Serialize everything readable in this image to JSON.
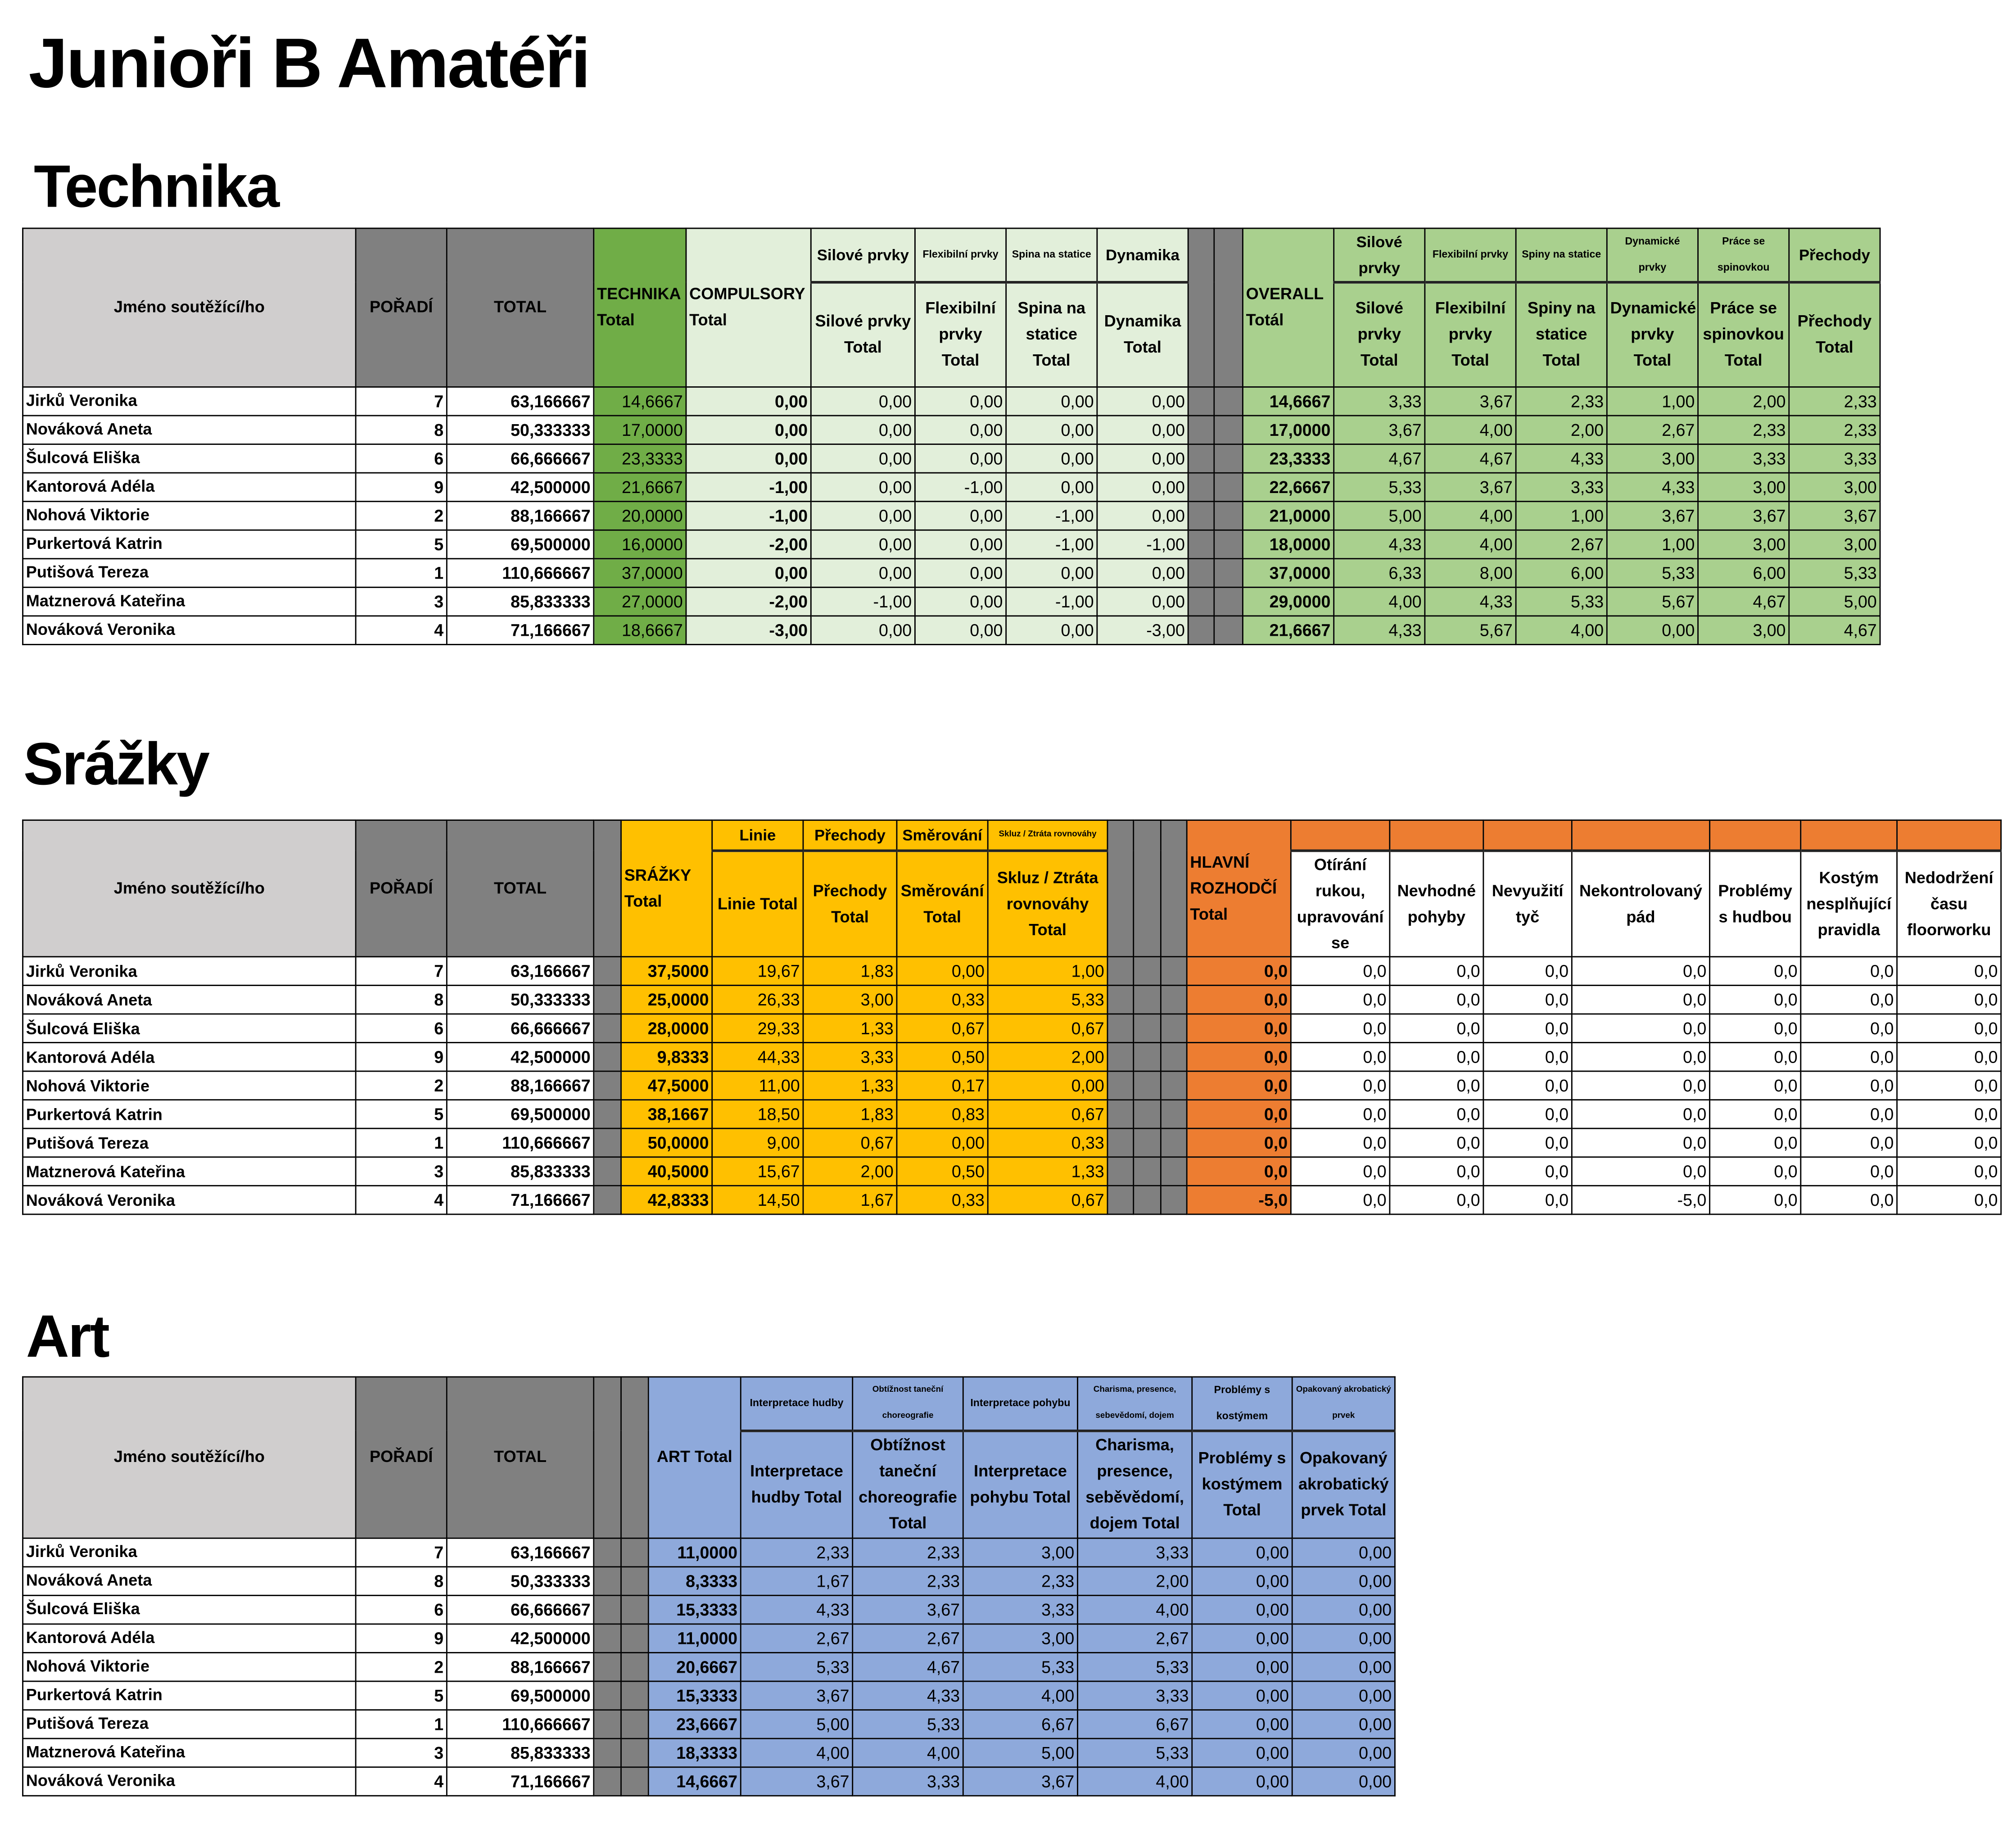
{
  "title": "Junioři B Amatéři",
  "common_headers": {
    "name": "Jméno soutěžící/ho",
    "poradi": "POŘADÍ",
    "total": "TOTAL"
  },
  "contestants": [
    {
      "name": "Jirků Veronika",
      "poradi": "7",
      "total": "63,166667"
    },
    {
      "name": "Nováková Aneta",
      "poradi": "8",
      "total": "50,333333"
    },
    {
      "name": "Šulcová Eliška",
      "poradi": "6",
      "total": "66,666667"
    },
    {
      "name": "Kantorová Adéla",
      "poradi": "9",
      "total": "42,500000"
    },
    {
      "name": "Nohová Viktorie",
      "poradi": "2",
      "total": "88,166667"
    },
    {
      "name": "Purkertová Katrin",
      "poradi": "5",
      "total": "69,500000"
    },
    {
      "name": "Putišová Tereza",
      "poradi": "1",
      "total": "110,666667"
    },
    {
      "name": "Matznerová Kateřina",
      "poradi": "3",
      "total": "85,833333"
    },
    {
      "name": "Nováková Veronika",
      "poradi": "4",
      "total": "71,166667"
    }
  ],
  "sections": {
    "technika": {
      "heading": "Technika",
      "columns": [
        {
          "group": "",
          "label": "TECHNIKA Total"
        },
        {
          "group": "",
          "label": "COMPULSORY Total"
        },
        {
          "group": "Silové prvky",
          "label": "Silové prvky Total"
        },
        {
          "group": "Flexibilní prvky",
          "label": "Flexibilní prvky Total"
        },
        {
          "group": "Spina na statice",
          "label": "Spina na statice Total"
        },
        {
          "group": "Dynamika",
          "label": "Dynamika Total"
        },
        {
          "group": "",
          "label": "OVERALL Totál"
        },
        {
          "group": "Silové prvky",
          "label": "Silové prvky Total"
        },
        {
          "group": "Flexibilní prvky",
          "label": "Flexibilní prvky Total"
        },
        {
          "group": "Spiny na statice",
          "label": "Spiny na statice Total"
        },
        {
          "group": "Dynamické prvky",
          "label": "Dynamické prvky Total"
        },
        {
          "group": "Práce se spinovkou",
          "label": "Práce se spinovkou Total"
        },
        {
          "group": "Přechody",
          "label": "Přechody Total"
        }
      ],
      "rows": [
        [
          "14,6667",
          "0,00",
          "0,00",
          "0,00",
          "0,00",
          "0,00",
          "14,6667",
          "3,33",
          "3,67",
          "2,33",
          "1,00",
          "2,00",
          "2,33"
        ],
        [
          "17,0000",
          "0,00",
          "0,00",
          "0,00",
          "0,00",
          "0,00",
          "17,0000",
          "3,67",
          "4,00",
          "2,00",
          "2,67",
          "2,33",
          "2,33"
        ],
        [
          "23,3333",
          "0,00",
          "0,00",
          "0,00",
          "0,00",
          "0,00",
          "23,3333",
          "4,67",
          "4,67",
          "4,33",
          "3,00",
          "3,33",
          "3,33"
        ],
        [
          "21,6667",
          "-1,00",
          "0,00",
          "-1,00",
          "0,00",
          "0,00",
          "22,6667",
          "5,33",
          "3,67",
          "3,33",
          "4,33",
          "3,00",
          "3,00"
        ],
        [
          "20,0000",
          "-1,00",
          "0,00",
          "0,00",
          "-1,00",
          "0,00",
          "21,0000",
          "5,00",
          "4,00",
          "1,00",
          "3,67",
          "3,67",
          "3,67"
        ],
        [
          "16,0000",
          "-2,00",
          "0,00",
          "0,00",
          "-1,00",
          "-1,00",
          "18,0000",
          "4,33",
          "4,00",
          "2,67",
          "1,00",
          "3,00",
          "3,00"
        ],
        [
          "37,0000",
          "0,00",
          "0,00",
          "0,00",
          "0,00",
          "0,00",
          "37,0000",
          "6,33",
          "8,00",
          "6,00",
          "5,33",
          "6,00",
          "5,33"
        ],
        [
          "27,0000",
          "-2,00",
          "-1,00",
          "0,00",
          "-1,00",
          "0,00",
          "29,0000",
          "4,00",
          "4,33",
          "5,33",
          "5,67",
          "4,67",
          "5,00"
        ],
        [
          "18,6667",
          "-3,00",
          "0,00",
          "0,00",
          "0,00",
          "-3,00",
          "21,6667",
          "4,33",
          "5,67",
          "4,00",
          "0,00",
          "3,00",
          "4,67"
        ]
      ]
    },
    "srazky": {
      "heading": "Srážky",
      "columns": [
        {
          "group": "",
          "label": "SRÁŽKY Total"
        },
        {
          "group": "Linie",
          "label": "Linie Total"
        },
        {
          "group": "Přechody",
          "label": "Přechody Total"
        },
        {
          "group": "Směrování",
          "label": "Směrování Total"
        },
        {
          "group": "Skluz / Ztráta rovnováhy",
          "label": "Skluz / Ztráta rovnováhy Total"
        },
        {
          "group": "",
          "label": "HLAVNÍ ROZHODČÍ Total"
        },
        {
          "group": "",
          "label": "Otírání rukou, upravování se"
        },
        {
          "group": "",
          "label": "Nevhodné pohyby"
        },
        {
          "group": "",
          "label": "Nevyužití tyč"
        },
        {
          "group": "",
          "label": "Nekontrolovaný pád"
        },
        {
          "group": "",
          "label": "Problémy s hudbou"
        },
        {
          "group": "",
          "label": "Kostým nesplňující pravidla"
        },
        {
          "group": "",
          "label": "Nedodržení času floorworku"
        }
      ],
      "rows": [
        [
          "37,5000",
          "19,67",
          "1,83",
          "0,00",
          "1,00",
          "0,0",
          "0,0",
          "0,0",
          "0,0",
          "0,0",
          "0,0",
          "0,0",
          "0,0"
        ],
        [
          "25,0000",
          "26,33",
          "3,00",
          "0,33",
          "5,33",
          "0,0",
          "0,0",
          "0,0",
          "0,0",
          "0,0",
          "0,0",
          "0,0",
          "0,0"
        ],
        [
          "28,0000",
          "29,33",
          "1,33",
          "0,67",
          "0,67",
          "0,0",
          "0,0",
          "0,0",
          "0,0",
          "0,0",
          "0,0",
          "0,0",
          "0,0"
        ],
        [
          "9,8333",
          "44,33",
          "3,33",
          "0,50",
          "2,00",
          "0,0",
          "0,0",
          "0,0",
          "0,0",
          "0,0",
          "0,0",
          "0,0",
          "0,0"
        ],
        [
          "47,5000",
          "11,00",
          "1,33",
          "0,17",
          "0,00",
          "0,0",
          "0,0",
          "0,0",
          "0,0",
          "0,0",
          "0,0",
          "0,0",
          "0,0"
        ],
        [
          "38,1667",
          "18,50",
          "1,83",
          "0,83",
          "0,67",
          "0,0",
          "0,0",
          "0,0",
          "0,0",
          "0,0",
          "0,0",
          "0,0",
          "0,0"
        ],
        [
          "50,0000",
          "9,00",
          "0,67",
          "0,00",
          "0,33",
          "0,0",
          "0,0",
          "0,0",
          "0,0",
          "0,0",
          "0,0",
          "0,0",
          "0,0"
        ],
        [
          "40,5000",
          "15,67",
          "2,00",
          "0,50",
          "1,33",
          "0,0",
          "0,0",
          "0,0",
          "0,0",
          "0,0",
          "0,0",
          "0,0",
          "0,0"
        ],
        [
          "42,8333",
          "14,50",
          "1,67",
          "0,33",
          "0,67",
          "-5,0",
          "0,0",
          "0,0",
          "0,0",
          "-5,0",
          "0,0",
          "0,0",
          "0,0"
        ]
      ]
    },
    "art": {
      "heading": "Art",
      "columns": [
        {
          "group": "",
          "label": "ART Total"
        },
        {
          "group": "Interpretace hudby",
          "label": "Interpretace hudby Total"
        },
        {
          "group": "Obtížnost taneční choreografie",
          "label": "Obtížnost taneční choreografie Total"
        },
        {
          "group": "Interpretace pohybu",
          "label": "Interpretace pohybu Total"
        },
        {
          "group": "Charisma, presence, sebevědomí, dojem",
          "label": "Charisma, presence, seběvědomí, dojem Total"
        },
        {
          "group": "Problémy s kostýmem",
          "label": "Problémy s kostýmem Total"
        },
        {
          "group": "Opakovaný akrobatický prvek",
          "label": "Opakovaný akrobatický prvek Total"
        }
      ],
      "rows": [
        [
          "11,0000",
          "2,33",
          "2,33",
          "3,00",
          "3,33",
          "0,00",
          "0,00"
        ],
        [
          "8,3333",
          "1,67",
          "2,33",
          "2,33",
          "2,00",
          "0,00",
          "0,00"
        ],
        [
          "15,3333",
          "4,33",
          "3,67",
          "3,33",
          "4,00",
          "0,00",
          "0,00"
        ],
        [
          "11,0000",
          "2,67",
          "2,67",
          "3,00",
          "2,67",
          "0,00",
          "0,00"
        ],
        [
          "20,6667",
          "5,33",
          "4,67",
          "5,33",
          "5,33",
          "0,00",
          "0,00"
        ],
        [
          "15,3333",
          "3,67",
          "4,33",
          "4,00",
          "3,33",
          "0,00",
          "0,00"
        ],
        [
          "23,6667",
          "5,00",
          "5,33",
          "6,67",
          "6,67",
          "0,00",
          "0,00"
        ],
        [
          "18,3333",
          "4,00",
          "4,00",
          "5,00",
          "5,33",
          "0,00",
          "0,00"
        ],
        [
          "14,6667",
          "3,67",
          "3,33",
          "3,67",
          "4,00",
          "0,00",
          "0,00"
        ]
      ]
    }
  },
  "colors": {
    "technika_total": "#70AD47",
    "technika_light": "#E2EFDA",
    "overall": "#A9D08E",
    "srazky": "#FFC000",
    "hlavni_rozhodci": "#ED7D31",
    "art": "#8EA9DB",
    "name_header": "#D0CECE",
    "gray_header": "#808080"
  }
}
